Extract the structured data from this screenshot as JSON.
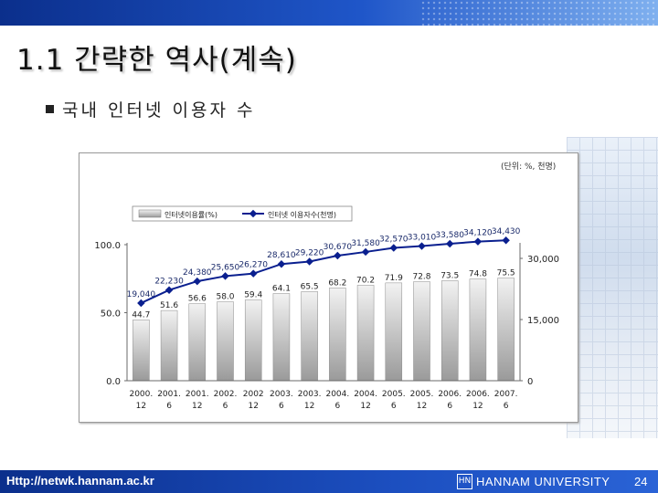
{
  "slide": {
    "title": "1.1 간략한 역사(계속)",
    "bullet": "국내 인터넷 이용자 수",
    "footer_url": "Http://netwk.hannam.ac.kr",
    "footer_university": "HANNAM UNIVERSITY",
    "footer_page": "24",
    "logo_text": "HN"
  },
  "chart_data": {
    "type": "bar",
    "unit_note": "(단위: %, 천명)",
    "categories": [
      {
        "line1": "2000.",
        "line2": "12"
      },
      {
        "line1": "2001.",
        "line2": "6"
      },
      {
        "line1": "2001.",
        "line2": "12"
      },
      {
        "line1": "2002.",
        "line2": "6"
      },
      {
        "line1": "2002",
        "line2": "12"
      },
      {
        "line1": "2003.",
        "line2": "6"
      },
      {
        "line1": "2003.",
        "line2": "12"
      },
      {
        "line1": "2004.",
        "line2": "6"
      },
      {
        "line1": "2004.",
        "line2": "12"
      },
      {
        "line1": "2005.",
        "line2": "6"
      },
      {
        "line1": "2005.",
        "line2": "12"
      },
      {
        "line1": "2006.",
        "line2": "6"
      },
      {
        "line1": "2006.",
        "line2": "12"
      },
      {
        "line1": "2007.",
        "line2": "6"
      }
    ],
    "series": [
      {
        "name": "인터넷이용률(%)",
        "kind": "bar",
        "axis": "left",
        "values": [
          44.7,
          51.6,
          56.6,
          58.0,
          59.4,
          64.1,
          65.5,
          68.2,
          70.2,
          71.9,
          72.8,
          73.5,
          74.8,
          75.5
        ],
        "labels": [
          "44.7",
          "51.6",
          "56.6",
          "58.0",
          "59.4",
          "64.1",
          "65.5",
          "68.2",
          "70.2",
          "71.9",
          "72.8",
          "73.5",
          "74.8",
          "75.5"
        ]
      },
      {
        "name": "인터넷 이용자수(천명)",
        "kind": "line",
        "axis": "right",
        "values": [
          19040,
          22230,
          24380,
          25650,
          26270,
          28610,
          29220,
          30670,
          31580,
          32570,
          33010,
          33580,
          34120,
          34430
        ],
        "labels": [
          "19,040",
          "22,230",
          "24,380",
          "25,650",
          "26,270",
          "28,610",
          "29,220",
          "30,670",
          "31,580",
          "32,570",
          "33,010",
          "33,580",
          "34,120",
          "34,430"
        ]
      }
    ],
    "left_axis": {
      "ticks": [
        "0.0",
        "50.0",
        "100.0"
      ],
      "ylim": [
        0,
        100
      ]
    },
    "right_axis": {
      "ticks": [
        "0",
        "15,000",
        "30,000"
      ],
      "ylim": [
        0,
        45000
      ]
    },
    "legend": "top-center",
    "colors": {
      "bar_top": "#f2f2f2",
      "bar_bottom": "#9a9a9a",
      "line": "#0a1f8f",
      "marker": "#0a1f8f",
      "axis": "#6a6a6a",
      "label": "#222222"
    }
  }
}
